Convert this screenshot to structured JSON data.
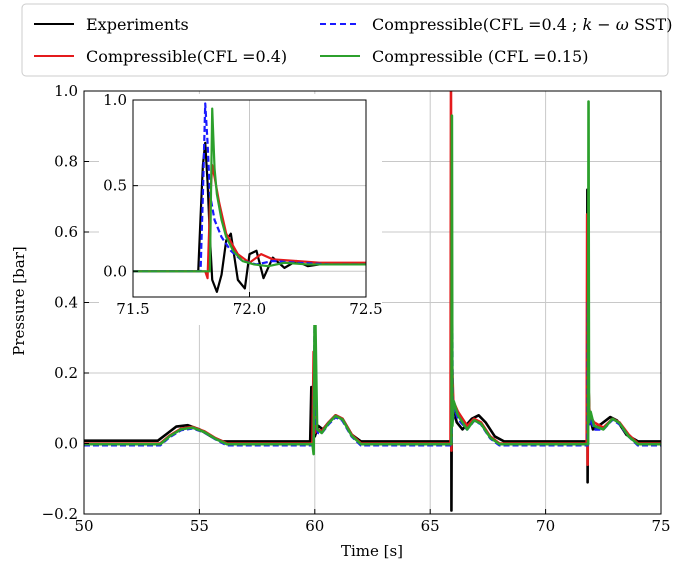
{
  "chart_data": {
    "type": "line",
    "xlabel": "Time [s]",
    "ylabel": "Pressure [bar]",
    "xlim": [
      50,
      75
    ],
    "ylim": [
      -0.2,
      1.0
    ],
    "xticks": [
      50,
      55,
      60,
      65,
      70,
      75
    ],
    "yticks": [
      -0.2,
      0.0,
      0.2,
      0.4,
      0.6,
      0.8,
      1.0
    ],
    "xtick_labels": [
      "50",
      "55",
      "60",
      "65",
      "70",
      "75"
    ],
    "ytick_labels": [
      "−0.2",
      "0.0",
      "0.2",
      "0.4",
      "0.6",
      "0.8",
      "1.0"
    ],
    "grid": true,
    "legend_position": "top",
    "series": [
      {
        "name": "Experiments",
        "color": "#000000",
        "x": [
          50,
          53.2,
          53.6,
          54.0,
          54.5,
          55.0,
          55.5,
          56.0,
          59.8,
          59.85,
          59.9,
          60.0,
          60.15,
          60.35,
          60.6,
          60.9,
          61.2,
          61.6,
          62.0,
          65.9,
          65.91,
          65.92,
          65.94,
          66.0,
          66.15,
          66.4,
          66.8,
          67.1,
          67.4,
          67.8,
          68.2,
          71.8,
          71.81,
          71.82,
          71.84,
          71.9,
          72.05,
          72.4,
          72.8,
          73.1,
          73.5,
          74.0,
          75
        ],
        "y": [
          0.008,
          0.008,
          0.028,
          0.048,
          0.052,
          0.04,
          0.02,
          0.006,
          0.006,
          0.16,
          0.09,
          0.02,
          0.05,
          0.04,
          0.06,
          0.08,
          0.07,
          0.025,
          0.006,
          0.006,
          0.6,
          -0.19,
          0.2,
          0.1,
          0.06,
          0.04,
          0.07,
          0.08,
          0.06,
          0.02,
          0.006,
          0.006,
          0.72,
          -0.11,
          0.2,
          0.08,
          0.04,
          0.055,
          0.075,
          0.065,
          0.025,
          0.006,
          0.006
        ]
      },
      {
        "name": "Compressible(CFL =0.4)",
        "color": "#e41a1c",
        "x": [
          50,
          53.3,
          53.7,
          54.2,
          54.7,
          55.2,
          55.7,
          56.2,
          59.9,
          59.95,
          60.0,
          60.1,
          60.3,
          60.6,
          60.9,
          61.2,
          61.6,
          62.0,
          65.88,
          65.9,
          65.92,
          65.94,
          66.0,
          66.2,
          66.6,
          66.9,
          67.2,
          67.6,
          68.0,
          71.78,
          71.8,
          71.82,
          71.84,
          71.9,
          72.1,
          72.5,
          72.9,
          73.2,
          73.6,
          74.0,
          75
        ],
        "y": [
          0.0,
          0.0,
          0.022,
          0.042,
          0.047,
          0.035,
          0.015,
          0.0,
          0.0,
          0.26,
          0.03,
          0.04,
          0.035,
          0.06,
          0.08,
          0.07,
          0.025,
          0.0,
          0.0,
          1.0,
          -0.02,
          0.25,
          0.12,
          0.09,
          0.05,
          0.07,
          0.06,
          0.02,
          0.0,
          0.0,
          0.65,
          -0.06,
          0.2,
          0.08,
          0.06,
          0.045,
          0.07,
          0.06,
          0.025,
          0.0,
          0.0
        ]
      },
      {
        "name": "Compressible(CFL =0.4 ; $k-\\omega$ SST)",
        "display_name": "Compressible(CFL =0.4 ; ",
        "display_math": "k − ω",
        "display_suffix": " SST)",
        "color": "#1a1aff",
        "dashed": true,
        "x": [
          50,
          53.3,
          53.7,
          54.2,
          54.7,
          55.2,
          55.7,
          56.2,
          59.95,
          60.0,
          60.05,
          60.15,
          60.3,
          60.6,
          60.9,
          61.2,
          61.6,
          62.0,
          65.93,
          65.95,
          65.97,
          66.05,
          66.2,
          66.6,
          66.9,
          67.2,
          67.6,
          68.0,
          71.82,
          71.84,
          71.86,
          71.95,
          72.1,
          72.5,
          72.9,
          73.2,
          73.6,
          74.0,
          75
        ],
        "y": [
          -0.005,
          -0.005,
          0.018,
          0.038,
          0.043,
          0.032,
          0.012,
          -0.005,
          -0.005,
          0.37,
          0.05,
          0.03,
          0.03,
          0.055,
          0.075,
          0.065,
          0.02,
          -0.005,
          -0.005,
          0.4,
          0.06,
          0.1,
          0.07,
          0.04,
          0.065,
          0.055,
          0.015,
          -0.005,
          -0.005,
          0.4,
          0.05,
          0.07,
          0.04,
          0.04,
          0.068,
          0.055,
          0.02,
          -0.005,
          -0.005
        ]
      },
      {
        "name": "Compressible (CFL =0.15)",
        "color": "#2ca02c",
        "x": [
          50,
          53.3,
          53.7,
          54.2,
          54.7,
          55.2,
          55.7,
          56.2,
          59.9,
          59.95,
          60.0,
          60.1,
          60.3,
          60.6,
          60.9,
          61.2,
          61.6,
          62.0,
          65.92,
          65.94,
          65.96,
          66.02,
          66.2,
          66.6,
          66.9,
          67.2,
          67.6,
          68.0,
          71.84,
          71.86,
          71.88,
          71.95,
          72.1,
          72.5,
          72.9,
          73.2,
          73.6,
          74.0,
          75
        ],
        "y": [
          -0.002,
          -0.002,
          0.02,
          0.04,
          0.045,
          0.033,
          0.013,
          -0.002,
          -0.002,
          -0.03,
          0.45,
          0.04,
          0.03,
          0.058,
          0.078,
          0.068,
          0.022,
          -0.002,
          -0.002,
          0.93,
          0.05,
          0.12,
          0.08,
          0.04,
          0.066,
          0.056,
          0.017,
          -0.002,
          -0.002,
          0.97,
          0.06,
          0.09,
          0.05,
          0.04,
          0.07,
          0.058,
          0.02,
          -0.002,
          -0.002
        ]
      }
    ],
    "inset": {
      "xlim": [
        71.5,
        72.5
      ],
      "ylim": [
        -0.15,
        1.0
      ],
      "xticks": [
        71.5,
        72.0,
        72.5
      ],
      "yticks": [
        0.0,
        0.5,
        1.0
      ],
      "xtick_labels": [
        "71.5",
        "72.0",
        "72.5"
      ],
      "ytick_labels": [
        "0.0",
        "0.5",
        "1.0"
      ],
      "series": [
        {
          "name": "Experiments",
          "x": [
            71.5,
            71.78,
            71.79,
            71.8,
            71.81,
            71.82,
            71.83,
            71.84,
            71.86,
            71.88,
            71.9,
            71.92,
            71.95,
            71.98,
            72.0,
            72.03,
            72.06,
            72.1,
            72.15,
            72.2,
            72.25,
            72.3,
            72.5
          ],
          "y": [
            0.0,
            0.0,
            0.32,
            0.62,
            0.75,
            0.52,
            0.2,
            -0.05,
            -0.12,
            -0.02,
            0.18,
            0.22,
            -0.05,
            -0.1,
            0.1,
            0.12,
            -0.04,
            0.08,
            0.02,
            0.06,
            0.03,
            0.04,
            0.04
          ]
        },
        {
          "name": "Compressible(CFL =0.4)",
          "x": [
            71.5,
            71.81,
            71.82,
            71.83,
            71.84,
            71.85,
            71.87,
            71.9,
            71.95,
            72.0,
            72.05,
            72.1,
            72.2,
            72.3,
            72.5
          ],
          "y": [
            0.0,
            0.0,
            -0.04,
            0.38,
            0.62,
            0.55,
            0.4,
            0.22,
            0.1,
            0.05,
            0.1,
            0.07,
            0.06,
            0.05,
            0.05
          ]
        },
        {
          "name": "Compressible(CFL =0.4 ; $k-\\omega$ SST)",
          "x": [
            71.5,
            71.79,
            71.8,
            71.81,
            71.82,
            71.83,
            71.85,
            71.88,
            71.92,
            71.97,
            72.03,
            72.1,
            72.2,
            72.35,
            72.5
          ],
          "y": [
            0.0,
            0.0,
            0.45,
            0.98,
            0.75,
            0.45,
            0.3,
            0.2,
            0.12,
            0.06,
            0.04,
            0.06,
            0.05,
            0.04,
            0.04
          ]
        },
        {
          "name": "Compressible (CFL =0.15)",
          "x": [
            71.5,
            71.83,
            71.84,
            71.85,
            71.86,
            71.88,
            71.9,
            71.93,
            71.97,
            72.02,
            72.08,
            72.15,
            72.25,
            72.35,
            72.5
          ],
          "y": [
            0.0,
            0.0,
            0.95,
            0.6,
            0.45,
            0.3,
            0.2,
            0.12,
            0.06,
            0.04,
            0.03,
            0.05,
            0.04,
            0.04,
            0.04
          ]
        }
      ]
    }
  }
}
